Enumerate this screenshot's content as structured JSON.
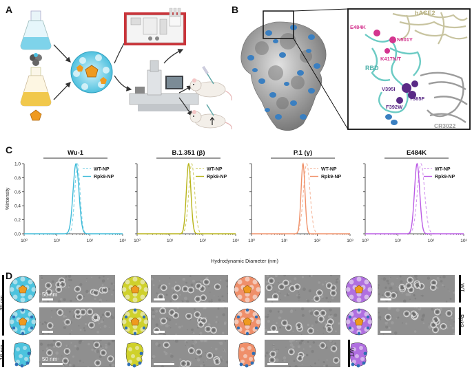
{
  "panels": {
    "a": "A",
    "b": "B",
    "c": "C",
    "d": "D"
  },
  "panel_b": {
    "labels": {
      "hace2": "hACE2",
      "e484k": "E484K",
      "n501y": "N501Y",
      "k417": "K417N/T",
      "rbd": "RBD",
      "v395i": "V395I",
      "y365f": "Y365F",
      "f392w": "F392W",
      "cr3022": "CR3022"
    },
    "colors": {
      "rbd": "#6ccbc4",
      "hace2": "#c8c4a0",
      "mutation": "#d4358f",
      "buried": "#5a2a86",
      "surface": "#9c9c9c",
      "glycan": "#3a7fc1"
    }
  },
  "panel_c": {
    "ylabel": "%Intensity",
    "xlabel": "Hydrodynamic Diameter (nm)",
    "legend": {
      "wt": "WT-NP",
      "rpk9": "Rpk9-NP"
    }
  },
  "chart_data": [
    {
      "type": "line",
      "title": "Wu-1",
      "color": "#3ebbd9",
      "xscale": "log",
      "xlim": [
        1,
        1000
      ],
      "ylim": [
        0,
        1.0
      ],
      "xticks": [
        "10⁰",
        "10¹",
        "10²",
        "10³"
      ],
      "yticks": [
        "0.0",
        "0.2",
        "0.4",
        "0.6",
        "0.8",
        "1.0"
      ],
      "series": [
        {
          "name": "WT-NP",
          "style": "dashed",
          "peak_nm": 42,
          "width_log": 0.08
        },
        {
          "name": "Rpk9-NP",
          "style": "solid",
          "peak_nm": 38,
          "width_log": 0.09
        }
      ]
    },
    {
      "type": "line",
      "title": "B.1.351 (β)",
      "color": "#b8b419",
      "xscale": "log",
      "xlim": [
        1,
        1000
      ],
      "ylim": [
        0,
        1.0
      ],
      "xticks": [
        "10⁰",
        "10¹",
        "10²",
        "10³"
      ],
      "yticks": [
        "0.0",
        "0.2",
        "0.4",
        "0.6",
        "0.8",
        "1.0"
      ],
      "series": [
        {
          "name": "WT-NP",
          "style": "dashed",
          "peak_nm": 46,
          "width_log": 0.09
        },
        {
          "name": "Rpk9-NP",
          "style": "solid",
          "peak_nm": 37,
          "width_log": 0.07
        }
      ]
    },
    {
      "type": "line",
      "title": "P.1 (γ)",
      "color": "#f0926a",
      "xscale": "log",
      "xlim": [
        1,
        1000
      ],
      "ylim": [
        0,
        1.0
      ],
      "xticks": [
        "10⁰",
        "10¹",
        "10²",
        "10³"
      ],
      "yticks": [
        "0.0",
        "0.2",
        "0.4",
        "0.6",
        "0.8",
        "1.0"
      ],
      "series": [
        {
          "name": "WT-NP",
          "style": "dashed",
          "peak_nm": 48,
          "width_log": 0.1
        },
        {
          "name": "Rpk9-NP",
          "style": "solid",
          "peak_nm": 37,
          "width_log": 0.06
        }
      ]
    },
    {
      "type": "line",
      "title": "E484K",
      "color": "#bb5be5",
      "xscale": "log",
      "xlim": [
        1,
        1000
      ],
      "ylim": [
        0,
        1.0
      ],
      "xticks": [
        "10⁰",
        "10¹",
        "10²",
        "10³"
      ],
      "yticks": [
        "0.0",
        "0.2",
        "0.4",
        "0.6",
        "0.8",
        "1.0"
      ],
      "series": [
        {
          "name": "WT-NP",
          "style": "dashed",
          "peak_nm": 50,
          "width_log": 0.11
        },
        {
          "name": "Rpk9-NP",
          "style": "solid",
          "peak_nm": 38,
          "width_log": 0.08
        }
      ]
    }
  ],
  "panel_d": {
    "size_labels": {
      "top": "36 nm",
      "bottom": "16 nm"
    },
    "scale_labels": {
      "row1": "50 nm",
      "row3": "50 nm"
    },
    "row_labels": {
      "wt": "WT",
      "rpk9": "Rpk9",
      "wt_bottom": "WT"
    },
    "np_colors": [
      "#4cc3de",
      "#cfd12c",
      "#ef8f6a",
      "#b06fe0"
    ]
  }
}
